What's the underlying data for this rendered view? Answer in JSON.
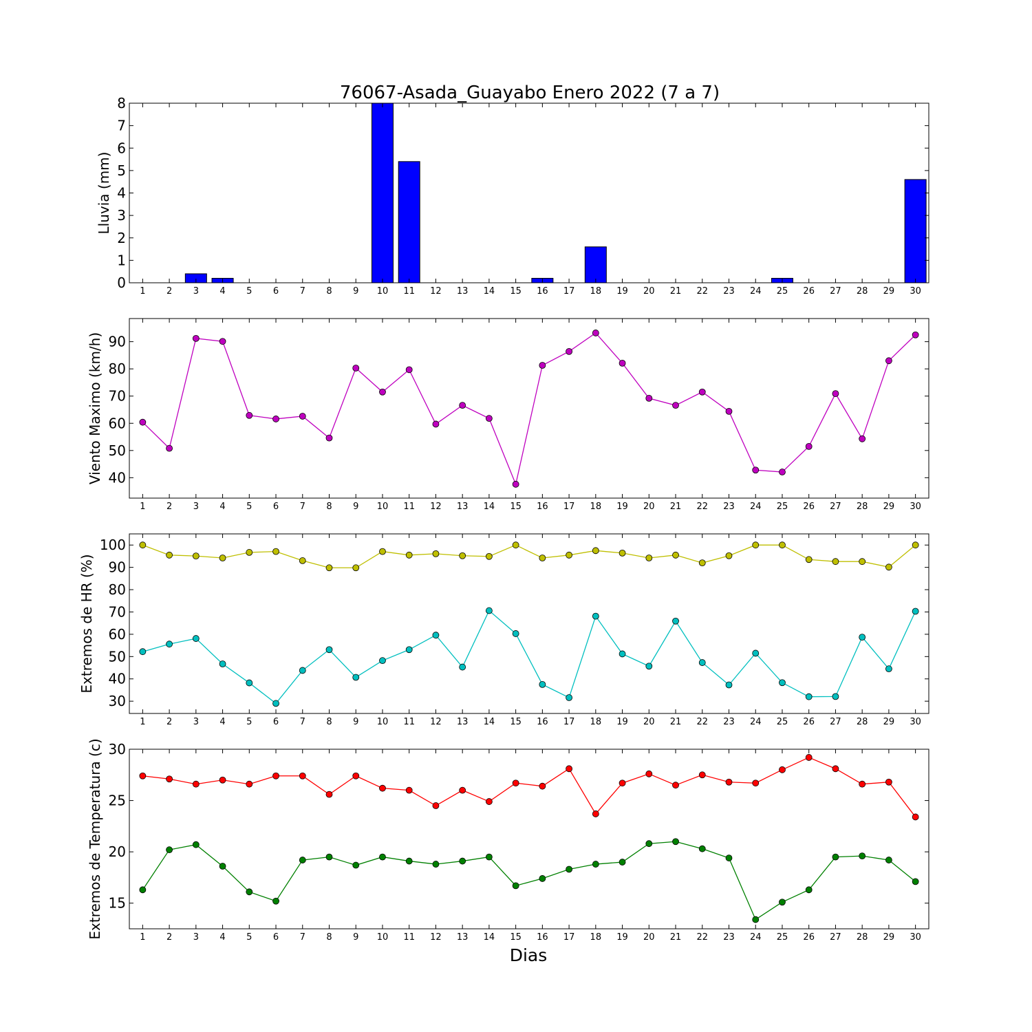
{
  "chart_data": [
    {
      "type": "bar",
      "title": "76067-Asada_Guayabo Enero 2022  (7 a 7)",
      "ylabel": "Lluvia (mm)",
      "xlabel": "",
      "xlim": [
        0.5,
        30.5
      ],
      "ylim": [
        0,
        8
      ],
      "yticks": [
        0,
        1,
        2,
        3,
        4,
        5,
        6,
        7,
        8
      ],
      "x": [
        1,
        2,
        3,
        4,
        5,
        6,
        7,
        8,
        9,
        10,
        11,
        12,
        13,
        14,
        15,
        16,
        17,
        18,
        19,
        20,
        21,
        22,
        23,
        24,
        25,
        26,
        27,
        28,
        29,
        30
      ],
      "series": [
        {
          "color": "#0000ff",
          "values": [
            0,
            0,
            0.4,
            0.2,
            0,
            0,
            0,
            0,
            0,
            8.0,
            5.4,
            0,
            0,
            0,
            0,
            0.2,
            0,
            1.6,
            0,
            0,
            0,
            0,
            0,
            0,
            0.2,
            0,
            0,
            0,
            0,
            4.6
          ]
        }
      ]
    },
    {
      "type": "line",
      "title": "",
      "ylabel": "Viento Maximo (km/h)",
      "xlabel": "",
      "xlim": [
        0.5,
        30.5
      ],
      "ylim": [
        32.5,
        98.5
      ],
      "yticks": [
        40,
        50,
        60,
        70,
        80,
        90
      ],
      "x": [
        1,
        2,
        3,
        4,
        5,
        6,
        7,
        8,
        9,
        10,
        11,
        12,
        13,
        14,
        15,
        16,
        17,
        18,
        19,
        20,
        21,
        22,
        23,
        24,
        25,
        26,
        27,
        28,
        29,
        30
      ],
      "series": [
        {
          "color": "#bf00bf",
          "values": [
            60.4,
            50.8,
            91.2,
            90.1,
            62.9,
            61.6,
            62.6,
            54.6,
            80.3,
            71.5,
            79.7,
            59.7,
            66.6,
            61.8,
            37.6,
            81.3,
            86.4,
            93.2,
            82.1,
            69.2,
            66.6,
            71.5,
            64.4,
            42.8,
            42.1,
            51.5,
            70.9,
            54.3,
            83.0,
            92.5
          ]
        }
      ]
    },
    {
      "type": "line",
      "title": "",
      "ylabel": "Extremos de HR (%)",
      "xlabel": "",
      "xlim": [
        0.5,
        30.5
      ],
      "ylim": [
        24.5,
        105
      ],
      "yticks": [
        30,
        40,
        50,
        60,
        70,
        80,
        90,
        100
      ],
      "x": [
        1,
        2,
        3,
        4,
        5,
        6,
        7,
        8,
        9,
        10,
        11,
        12,
        13,
        14,
        15,
        16,
        17,
        18,
        19,
        20,
        21,
        22,
        23,
        24,
        25,
        26,
        27,
        28,
        29,
        30
      ],
      "series": [
        {
          "color": "#bfbf00",
          "values": [
            100,
            95.5,
            95.1,
            94.2,
            96.7,
            97.1,
            93.0,
            89.8,
            89.8,
            97.1,
            95.5,
            96.1,
            95.2,
            94.9,
            100,
            94.2,
            95.5,
            97.5,
            96.4,
            94.2,
            95.5,
            92.0,
            95.2,
            100,
            100,
            93.5,
            92.6,
            92.6,
            90.1,
            100
          ]
        },
        {
          "color": "#00bfbf",
          "values": [
            52.2,
            55.6,
            58.1,
            46.7,
            38.2,
            29.0,
            43.8,
            53.1,
            40.7,
            48.2,
            53.1,
            59.6,
            45.3,
            70.6,
            60.3,
            37.5,
            31.6,
            68.1,
            51.2,
            45.7,
            65.9,
            47.3,
            37.3,
            51.5,
            38.3,
            32.0,
            32.1,
            58.7,
            44.5,
            70.3
          ]
        }
      ]
    },
    {
      "type": "line",
      "title": "",
      "ylabel": "Extremos de Temperatura (c)",
      "xlabel": "Dias",
      "xlim": [
        0.5,
        30.5
      ],
      "ylim": [
        12.5,
        30
      ],
      "yticks": [
        15,
        20,
        25,
        30
      ],
      "x": [
        1,
        2,
        3,
        4,
        5,
        6,
        7,
        8,
        9,
        10,
        11,
        12,
        13,
        14,
        15,
        16,
        17,
        18,
        19,
        20,
        21,
        22,
        23,
        24,
        25,
        26,
        27,
        28,
        29,
        30
      ],
      "series": [
        {
          "color": "#ff0000",
          "values": [
            27.4,
            27.1,
            26.6,
            27.0,
            26.6,
            27.4,
            27.4,
            25.6,
            27.4,
            26.2,
            26.0,
            24.5,
            26.0,
            24.9,
            26.7,
            26.4,
            28.1,
            23.7,
            26.7,
            27.6,
            26.5,
            27.5,
            26.8,
            26.7,
            28.0,
            29.2,
            28.1,
            26.6,
            26.8,
            23.4
          ]
        },
        {
          "color": "#008000",
          "values": [
            16.3,
            20.2,
            20.7,
            18.6,
            16.1,
            15.2,
            19.2,
            19.5,
            18.7,
            19.5,
            19.1,
            18.8,
            19.1,
            19.5,
            16.7,
            17.4,
            18.3,
            18.8,
            19.0,
            20.8,
            21.0,
            20.3,
            19.4,
            13.4,
            15.1,
            16.3,
            19.5,
            19.6,
            19.2,
            17.1
          ]
        }
      ]
    }
  ]
}
